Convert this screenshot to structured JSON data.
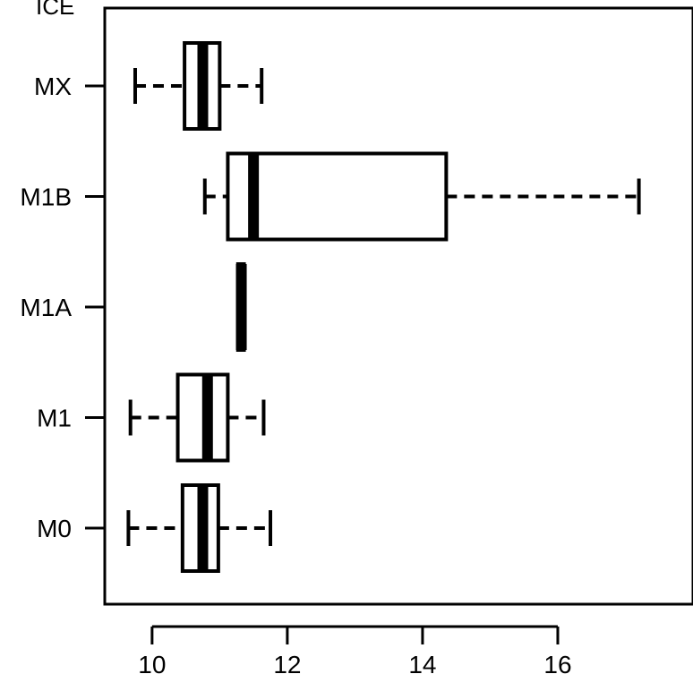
{
  "top_label": "ICE",
  "chart_data": {
    "type": "boxplot",
    "orientation": "horizontal",
    "title": "",
    "xlabel": "",
    "ylabel": "",
    "xlim": [
      9.3,
      18.0
    ],
    "x_ticks": [
      10,
      12,
      14,
      16
    ],
    "x_tick_labels": [
      "10",
      "12",
      "14",
      "16"
    ],
    "categories": [
      "M0",
      "M1",
      "M1A",
      "M1B",
      "MX"
    ],
    "boxes": [
      {
        "category": "M0",
        "whisker_low": 9.65,
        "q1": 10.45,
        "median": 10.75,
        "q3": 10.98,
        "whisker_high": 11.75
      },
      {
        "category": "M1",
        "whisker_low": 9.68,
        "q1": 10.38,
        "median": 10.82,
        "q3": 11.12,
        "whisker_high": 11.65
      },
      {
        "category": "M1A",
        "whisker_low": 11.27,
        "q1": 11.27,
        "median": 11.32,
        "q3": 11.36,
        "whisker_high": 11.36
      },
      {
        "category": "M1B",
        "whisker_low": 10.78,
        "q1": 11.12,
        "median": 11.5,
        "q3": 14.35,
        "whisker_high": 17.2
      },
      {
        "category": "MX",
        "whisker_low": 9.75,
        "q1": 10.48,
        "median": 10.75,
        "q3": 11.0,
        "whisker_high": 11.62
      }
    ],
    "grid": false,
    "legend": "none"
  }
}
